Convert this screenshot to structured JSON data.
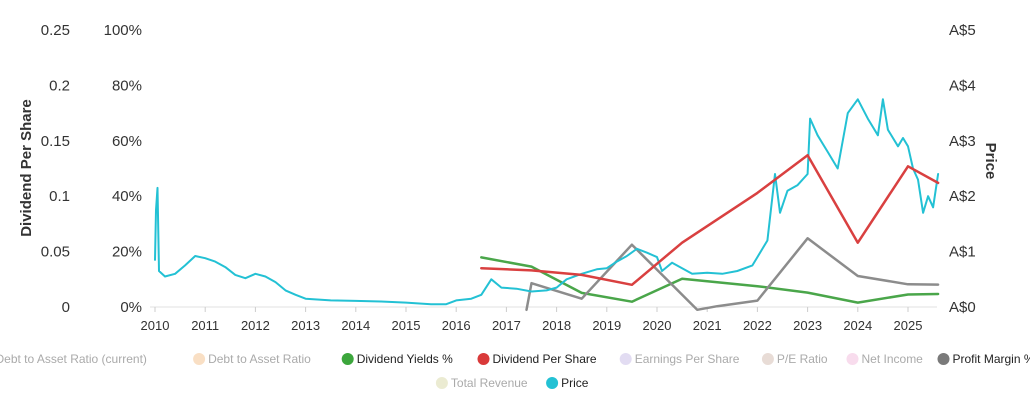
{
  "chart_data": {
    "type": "line",
    "title": "",
    "xlabel": "",
    "y_left_title": "Dividend Per Share",
    "y_right_title": "Price",
    "xlim": [
      2009.9,
      2025.6
    ],
    "x_ticks": [
      "2010",
      "2011",
      "2012",
      "2013",
      "2014",
      "2015",
      "2016",
      "2017",
      "2018",
      "2019",
      "2020",
      "2021",
      "2022",
      "2023",
      "2024",
      "2025"
    ],
    "y_dps_ticks": [
      "0",
      "0.05",
      "0.1",
      "0.15",
      "0.2",
      "0.25"
    ],
    "y_pct_ticks": [
      "0%",
      "20%",
      "40%",
      "60%",
      "80%",
      "100%"
    ],
    "y_price_ticks": [
      "A$0",
      "A$1",
      "A$2",
      "A$3",
      "A$4",
      "A$5"
    ],
    "ylim_dps": [
      0,
      0.25
    ],
    "ylim_pct": [
      0,
      100
    ],
    "ylim_price": [
      0,
      5
    ],
    "series": [
      {
        "name": "Dividend Yields %",
        "axis": "pct",
        "color": "#4aa64a",
        "points": [
          [
            2016.5,
            17.9
          ],
          [
            2017.5,
            14.6
          ],
          [
            2018.5,
            5.1
          ],
          [
            2019.5,
            1.9
          ],
          [
            2020.5,
            10.2
          ],
          [
            2022.0,
            7.5
          ],
          [
            2023.0,
            5.2
          ],
          [
            2024.0,
            1.6
          ],
          [
            2025.0,
            4.5
          ],
          [
            2025.6,
            4.7
          ]
        ]
      },
      {
        "name": "Dividend Per Share",
        "axis": "dps",
        "color": "#d94040",
        "points": [
          [
            2016.5,
            0.035
          ],
          [
            2017.5,
            0.033
          ],
          [
            2018.5,
            0.029
          ],
          [
            2019.5,
            0.02
          ],
          [
            2020.5,
            0.058
          ],
          [
            2022.0,
            0.103
          ],
          [
            2023.0,
            0.137
          ],
          [
            2024.0,
            0.058
          ],
          [
            2025.0,
            0.127
          ],
          [
            2025.6,
            0.112
          ]
        ]
      },
      {
        "name": "Profit Margin %",
        "axis": "pct",
        "color": "#8c8c8c",
        "points": [
          [
            2017.4,
            -1.0
          ],
          [
            2017.5,
            8.6
          ],
          [
            2018.5,
            3.0
          ],
          [
            2019.5,
            22.5
          ],
          [
            2020.8,
            -1.0
          ],
          [
            2021.2,
            0.3
          ],
          [
            2022.0,
            2.3
          ],
          [
            2023.0,
            24.8
          ],
          [
            2024.0,
            11.2
          ],
          [
            2025.0,
            8.2
          ],
          [
            2025.6,
            8.1
          ]
        ]
      },
      {
        "name": "Price",
        "axis": "price",
        "color": "#23c1d4",
        "points": [
          [
            2010.0,
            0.85
          ],
          [
            2010.02,
            1.75
          ],
          [
            2010.05,
            2.15
          ],
          [
            2010.08,
            0.65
          ],
          [
            2010.2,
            0.55
          ],
          [
            2010.4,
            0.6
          ],
          [
            2010.6,
            0.75
          ],
          [
            2010.8,
            0.92
          ],
          [
            2011.0,
            0.88
          ],
          [
            2011.2,
            0.82
          ],
          [
            2011.4,
            0.72
          ],
          [
            2011.6,
            0.58
          ],
          [
            2011.8,
            0.52
          ],
          [
            2012.0,
            0.6
          ],
          [
            2012.2,
            0.55
          ],
          [
            2012.4,
            0.45
          ],
          [
            2012.6,
            0.3
          ],
          [
            2012.8,
            0.22
          ],
          [
            2013.0,
            0.15
          ],
          [
            2013.5,
            0.12
          ],
          [
            2014.0,
            0.11
          ],
          [
            2014.5,
            0.1
          ],
          [
            2015.0,
            0.08
          ],
          [
            2015.5,
            0.05
          ],
          [
            2015.8,
            0.05
          ],
          [
            2016.0,
            0.12
          ],
          [
            2016.3,
            0.15
          ],
          [
            2016.5,
            0.22
          ],
          [
            2016.7,
            0.5
          ],
          [
            2016.9,
            0.35
          ],
          [
            2017.2,
            0.33
          ],
          [
            2017.5,
            0.28
          ],
          [
            2017.8,
            0.3
          ],
          [
            2018.0,
            0.35
          ],
          [
            2018.2,
            0.5
          ],
          [
            2018.5,
            0.6
          ],
          [
            2018.8,
            0.68
          ],
          [
            2019.0,
            0.7
          ],
          [
            2019.2,
            0.82
          ],
          [
            2019.4,
            0.92
          ],
          [
            2019.6,
            1.05
          ],
          [
            2019.8,
            0.98
          ],
          [
            2020.0,
            0.9
          ],
          [
            2020.1,
            0.65
          ],
          [
            2020.3,
            0.8
          ],
          [
            2020.5,
            0.7
          ],
          [
            2020.7,
            0.6
          ],
          [
            2021.0,
            0.62
          ],
          [
            2021.3,
            0.6
          ],
          [
            2021.6,
            0.65
          ],
          [
            2021.9,
            0.75
          ],
          [
            2022.0,
            0.9
          ],
          [
            2022.2,
            1.2
          ],
          [
            2022.35,
            2.4
          ],
          [
            2022.45,
            1.7
          ],
          [
            2022.6,
            2.1
          ],
          [
            2022.8,
            2.2
          ],
          [
            2023.0,
            2.4
          ],
          [
            2023.05,
            3.4
          ],
          [
            2023.2,
            3.1
          ],
          [
            2023.4,
            2.8
          ],
          [
            2023.6,
            2.5
          ],
          [
            2023.8,
            3.5
          ],
          [
            2024.0,
            3.75
          ],
          [
            2024.2,
            3.4
          ],
          [
            2024.4,
            3.1
          ],
          [
            2024.5,
            3.75
          ],
          [
            2024.6,
            3.2
          ],
          [
            2024.8,
            2.9
          ],
          [
            2024.9,
            3.05
          ],
          [
            2025.0,
            2.9
          ],
          [
            2025.1,
            2.5
          ],
          [
            2025.2,
            2.3
          ],
          [
            2025.3,
            1.7
          ],
          [
            2025.4,
            2.0
          ],
          [
            2025.5,
            1.8
          ],
          [
            2025.6,
            2.4
          ]
        ]
      }
    ],
    "legend": [
      {
        "label": "Debt to Asset Ratio (current)",
        "color": "#c7d9ec",
        "active": false
      },
      {
        "label": "Debt to Asset Ratio",
        "color": "#f9dfc4",
        "active": false
      },
      {
        "label": "Dividend Yields %",
        "color": "#3ca63c",
        "active": true
      },
      {
        "label": "Dividend Per Share",
        "color": "#d93a3a",
        "active": true
      },
      {
        "label": "Earnings Per Share",
        "color": "#e2dcf2",
        "active": false
      },
      {
        "label": "P/E Ratio",
        "color": "#e8dcd6",
        "active": false
      },
      {
        "label": "Net Income",
        "color": "#f8dced",
        "active": false
      },
      {
        "label": "Profit Margin %",
        "color": "#7a7a7a",
        "active": true
      },
      {
        "label": "Total Revenue",
        "color": "#ebebd2",
        "active": false
      },
      {
        "label": "Price",
        "color": "#23c1d4",
        "active": true
      }
    ],
    "legend_position": "bottom"
  }
}
